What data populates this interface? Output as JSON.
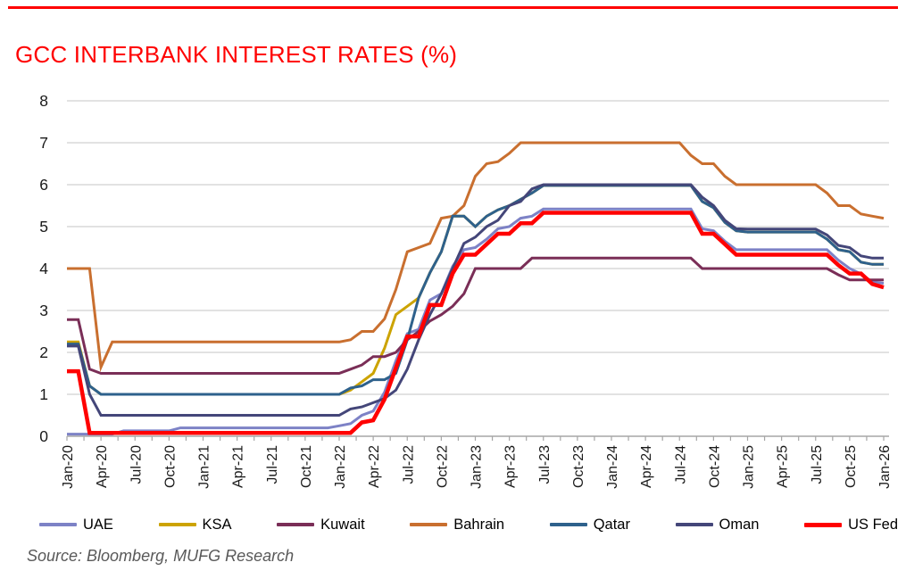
{
  "header": {
    "title": "GCC INTERBANK INTEREST RATES (%)"
  },
  "footer": {
    "source": "Source: Bloomberg, MUFG Research"
  },
  "colors": {
    "accent_red": "#FF0000",
    "title_red": "#FF0000",
    "gridline": "#D9D9D9",
    "axis_line": "#A6A6A6",
    "tick": "#A6A6A6",
    "axis_text": "#1A1A1A",
    "source_text": "#595959"
  },
  "chart_data": {
    "type": "line",
    "title": "GCC INTERBANK INTEREST RATES (%)",
    "xlabel": "",
    "ylabel": "",
    "ylim": [
      0,
      8
    ],
    "y_tick_labels": [
      "0",
      "1",
      "2",
      "3",
      "4",
      "5",
      "6",
      "7",
      "8"
    ],
    "grid": true,
    "legend_position": "bottom",
    "months": 73,
    "x_start": "Jan-20",
    "x_end": "Jan-26",
    "x_tick_labels": [
      "Jan-20",
      "Apr-20",
      "Jul-20",
      "Oct-20",
      "Jan-21",
      "Apr-21",
      "Jul-21",
      "Oct-21",
      "Jan-22",
      "Apr-22",
      "Jul-22",
      "Oct-22",
      "Jan-23",
      "Apr-23",
      "Jul-23",
      "Oct-23",
      "Jan-24",
      "Apr-24",
      "Jul-24",
      "Oct-24",
      "Jan-25",
      "Apr-25",
      "Jul-25",
      "Oct-25",
      "Jan-26"
    ],
    "series": [
      {
        "name": "UAE",
        "color": "#7D82C6",
        "width": 3,
        "values": [
          0.05,
          0.05,
          0.05,
          0.05,
          0.05,
          0.13,
          0.13,
          0.13,
          0.13,
          0.13,
          0.2,
          0.2,
          0.2,
          0.2,
          0.2,
          0.2,
          0.2,
          0.2,
          0.2,
          0.2,
          0.2,
          0.2,
          0.2,
          0.2,
          0.25,
          0.3,
          0.5,
          0.6,
          1.05,
          1.8,
          2.45,
          2.55,
          3.25,
          3.4,
          4.05,
          4.45,
          4.5,
          4.7,
          4.95,
          5.0,
          5.2,
          5.25,
          5.42,
          5.42,
          5.42,
          5.42,
          5.42,
          5.42,
          5.42,
          5.42,
          5.42,
          5.42,
          5.42,
          5.42,
          5.42,
          5.42,
          4.95,
          4.9,
          4.65,
          4.45,
          4.45,
          4.45,
          4.45,
          4.45,
          4.45,
          4.45,
          4.45,
          4.45,
          4.2,
          4.0,
          3.87,
          3.68,
          3.65
        ]
      },
      {
        "name": "KSA",
        "color": "#CCA300",
        "width": 3,
        "values": [
          2.25,
          2.25,
          1.2,
          1.0,
          1.0,
          1.0,
          1.0,
          1.0,
          1.0,
          1.0,
          1.0,
          1.0,
          1.0,
          1.0,
          1.0,
          1.0,
          1.0,
          1.0,
          1.0,
          1.0,
          1.0,
          1.0,
          1.0,
          1.0,
          1.0,
          1.1,
          1.3,
          1.5,
          2.1,
          2.9,
          3.1,
          3.3,
          3.9,
          4.4,
          5.25,
          5.25,
          5.0,
          5.25,
          5.4,
          5.5,
          5.65,
          5.8,
          5.98,
          5.98,
          5.98,
          5.98,
          5.98,
          5.98,
          5.98,
          5.98,
          5.98,
          5.98,
          5.98,
          5.98,
          5.98,
          5.98,
          5.6,
          5.45,
          5.1,
          4.9,
          4.87,
          4.87,
          4.87,
          4.87,
          4.87,
          4.87,
          4.87,
          4.7,
          4.45,
          4.4,
          4.15,
          4.1,
          4.1
        ]
      },
      {
        "name": "Kuwait",
        "color": "#7A2E57",
        "width": 3,
        "values": [
          2.78,
          2.78,
          1.6,
          1.5,
          1.5,
          1.5,
          1.5,
          1.5,
          1.5,
          1.5,
          1.5,
          1.5,
          1.5,
          1.5,
          1.5,
          1.5,
          1.5,
          1.5,
          1.5,
          1.5,
          1.5,
          1.5,
          1.5,
          1.5,
          1.5,
          1.6,
          1.7,
          1.9,
          1.9,
          2.0,
          2.3,
          2.5,
          2.75,
          2.9,
          3.1,
          3.4,
          4.0,
          4.0,
          4.0,
          4.0,
          4.0,
          4.25,
          4.25,
          4.25,
          4.25,
          4.25,
          4.25,
          4.25,
          4.25,
          4.25,
          4.25,
          4.25,
          4.25,
          4.25,
          4.25,
          4.25,
          4.0,
          4.0,
          4.0,
          4.0,
          4.0,
          4.0,
          4.0,
          4.0,
          4.0,
          4.0,
          4.0,
          4.0,
          3.85,
          3.73,
          3.73,
          3.73,
          3.73
        ]
      },
      {
        "name": "Bahrain",
        "color": "#C96F2F",
        "width": 3,
        "values": [
          4.0,
          4.0,
          4.0,
          1.65,
          2.25,
          2.25,
          2.25,
          2.25,
          2.25,
          2.25,
          2.25,
          2.25,
          2.25,
          2.25,
          2.25,
          2.25,
          2.25,
          2.25,
          2.25,
          2.25,
          2.25,
          2.25,
          2.25,
          2.25,
          2.25,
          2.3,
          2.5,
          2.5,
          2.8,
          3.5,
          4.4,
          4.5,
          4.6,
          5.2,
          5.25,
          5.5,
          6.2,
          6.5,
          6.55,
          6.75,
          7.0,
          7.0,
          7.0,
          7.0,
          7.0,
          7.0,
          7.0,
          7.0,
          7.0,
          7.0,
          7.0,
          7.0,
          7.0,
          7.0,
          7.0,
          6.7,
          6.5,
          6.5,
          6.2,
          6.0,
          6.0,
          6.0,
          6.0,
          6.0,
          6.0,
          6.0,
          6.0,
          5.8,
          5.5,
          5.5,
          5.3,
          5.25,
          5.2
        ]
      },
      {
        "name": "Qatar",
        "color": "#2E618C",
        "width": 3,
        "values": [
          2.2,
          2.2,
          1.2,
          1.0,
          1.0,
          1.0,
          1.0,
          1.0,
          1.0,
          1.0,
          1.0,
          1.0,
          1.0,
          1.0,
          1.0,
          1.0,
          1.0,
          1.0,
          1.0,
          1.0,
          1.0,
          1.0,
          1.0,
          1.0,
          1.0,
          1.15,
          1.2,
          1.35,
          1.35,
          1.5,
          2.3,
          3.3,
          3.9,
          4.4,
          5.25,
          5.25,
          5.0,
          5.25,
          5.4,
          5.5,
          5.65,
          5.8,
          5.98,
          5.98,
          5.98,
          5.98,
          5.98,
          5.98,
          5.98,
          5.98,
          5.98,
          5.98,
          5.98,
          5.98,
          5.98,
          5.98,
          5.6,
          5.45,
          5.1,
          4.9,
          4.87,
          4.87,
          4.87,
          4.87,
          4.87,
          4.87,
          4.87,
          4.7,
          4.45,
          4.4,
          4.15,
          4.1,
          4.1
        ]
      },
      {
        "name": "Oman",
        "color": "#444679",
        "width": 3,
        "values": [
          2.15,
          2.15,
          1.0,
          0.5,
          0.5,
          0.5,
          0.5,
          0.5,
          0.5,
          0.5,
          0.5,
          0.5,
          0.5,
          0.5,
          0.5,
          0.5,
          0.5,
          0.5,
          0.5,
          0.5,
          0.5,
          0.5,
          0.5,
          0.5,
          0.5,
          0.65,
          0.7,
          0.8,
          0.9,
          1.1,
          1.6,
          2.3,
          2.9,
          3.4,
          4.0,
          4.6,
          4.75,
          5.0,
          5.15,
          5.5,
          5.6,
          5.9,
          6.0,
          6.0,
          6.0,
          6.0,
          6.0,
          6.0,
          6.0,
          6.0,
          6.0,
          6.0,
          6.0,
          6.0,
          6.0,
          6.0,
          5.7,
          5.5,
          5.15,
          4.95,
          4.94,
          4.94,
          4.94,
          4.94,
          4.94,
          4.94,
          4.94,
          4.8,
          4.55,
          4.5,
          4.3,
          4.25,
          4.25
        ]
      },
      {
        "name": "US Fed",
        "color": "#FF0000",
        "width": 4.5,
        "values": [
          1.55,
          1.55,
          0.08,
          0.08,
          0.08,
          0.08,
          0.08,
          0.08,
          0.08,
          0.08,
          0.08,
          0.08,
          0.08,
          0.08,
          0.08,
          0.08,
          0.08,
          0.08,
          0.08,
          0.08,
          0.08,
          0.08,
          0.08,
          0.08,
          0.08,
          0.08,
          0.33,
          0.38,
          0.88,
          1.63,
          2.38,
          2.38,
          3.13,
          3.13,
          3.88,
          4.33,
          4.33,
          4.58,
          4.83,
          4.83,
          5.08,
          5.08,
          5.33,
          5.33,
          5.33,
          5.33,
          5.33,
          5.33,
          5.33,
          5.33,
          5.33,
          5.33,
          5.33,
          5.33,
          5.33,
          5.33,
          4.83,
          4.83,
          4.58,
          4.33,
          4.33,
          4.33,
          4.33,
          4.33,
          4.33,
          4.33,
          4.33,
          4.33,
          4.08,
          3.88,
          3.88,
          3.63,
          3.55
        ]
      }
    ]
  }
}
